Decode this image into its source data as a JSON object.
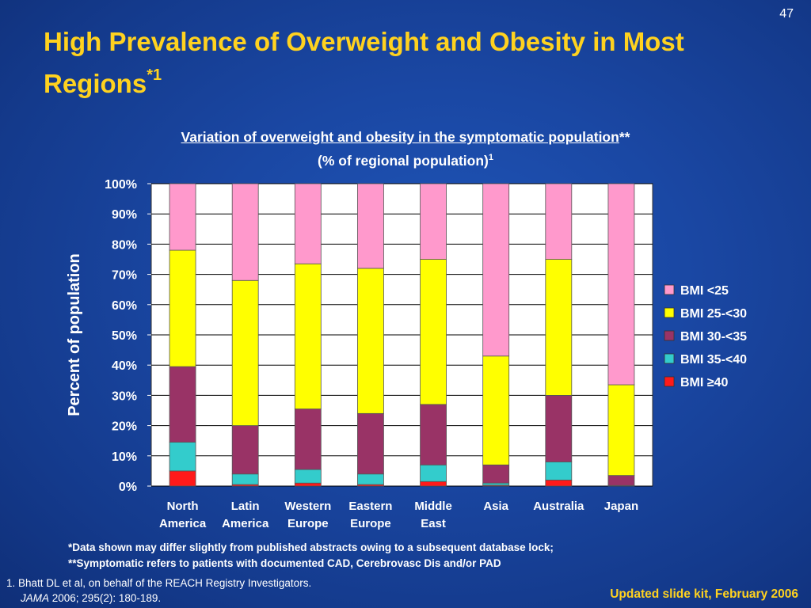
{
  "slide_number": "47",
  "title_main": "High Prevalence of Overweight and Obesity in Most Regions",
  "title_sup": "*1",
  "chart_title_line1_underlined": "Variation of overweight and obesity in the symptomatic population",
  "chart_title_line1_suffix": "**",
  "chart_title_line2": "(% of regional population)",
  "chart_title_line2_sup": "1",
  "footnote_1": "*Data shown may differ slightly from published abstracts owing to a subsequent database lock;",
  "footnote_2": "**Symptomatic refers to patients with documented CAD, Cerebrovasc Dis and/or PAD",
  "reference_line1": "1. Bhatt DL et al, on behalf of the REACH Registry Investigators.",
  "reference_journal": "JAMA",
  "reference_line2_rest": " 2006; 295(2): 180-189.",
  "kit_label": "Updated slide kit, February 2006",
  "chart_data": {
    "type": "bar",
    "stacked": true,
    "ylabel": "Percent of population",
    "ylim": [
      0,
      100
    ],
    "y_ticks": [
      "0%",
      "10%",
      "20%",
      "30%",
      "40%",
      "50%",
      "60%",
      "70%",
      "80%",
      "90%",
      "100%"
    ],
    "categories": [
      [
        "North",
        "America"
      ],
      [
        "Latin",
        "America"
      ],
      [
        "Western",
        "Europe"
      ],
      [
        "Eastern",
        "Europe"
      ],
      [
        "Middle",
        "East"
      ],
      [
        "Asia",
        ""
      ],
      [
        "Australia",
        ""
      ],
      [
        "Japan",
        ""
      ]
    ],
    "series": [
      {
        "name": "BMI ≥40",
        "color": "#ff1a1a",
        "values": [
          5,
          0.5,
          1,
          0.5,
          1.5,
          0.3,
          2,
          0
        ]
      },
      {
        "name": "BMI 35-<40",
        "color": "#33cccc",
        "values": [
          9.5,
          3.5,
          4.5,
          3.5,
          5.5,
          0.7,
          6,
          0.2
        ]
      },
      {
        "name": "BMI 30-<35",
        "color": "#993366",
        "values": [
          25,
          16,
          20,
          20,
          20,
          6,
          22,
          3.3
        ]
      },
      {
        "name": "BMI 25-<30",
        "color": "#ffff00",
        "values": [
          38.5,
          48,
          48,
          48,
          48,
          36,
          45,
          30
        ]
      },
      {
        "name": "BMI <25",
        "color": "#ff99cc",
        "values": [
          22,
          32,
          26.5,
          28,
          25,
          57,
          25,
          66.5
        ]
      }
    ],
    "legend_order": [
      "BMI <25",
      "BMI 25-<30",
      "BMI 30-<35",
      "BMI 35-<40",
      "BMI ≥40"
    ],
    "legend_position": "right",
    "grid": true,
    "plot_background": "#ffffff"
  }
}
